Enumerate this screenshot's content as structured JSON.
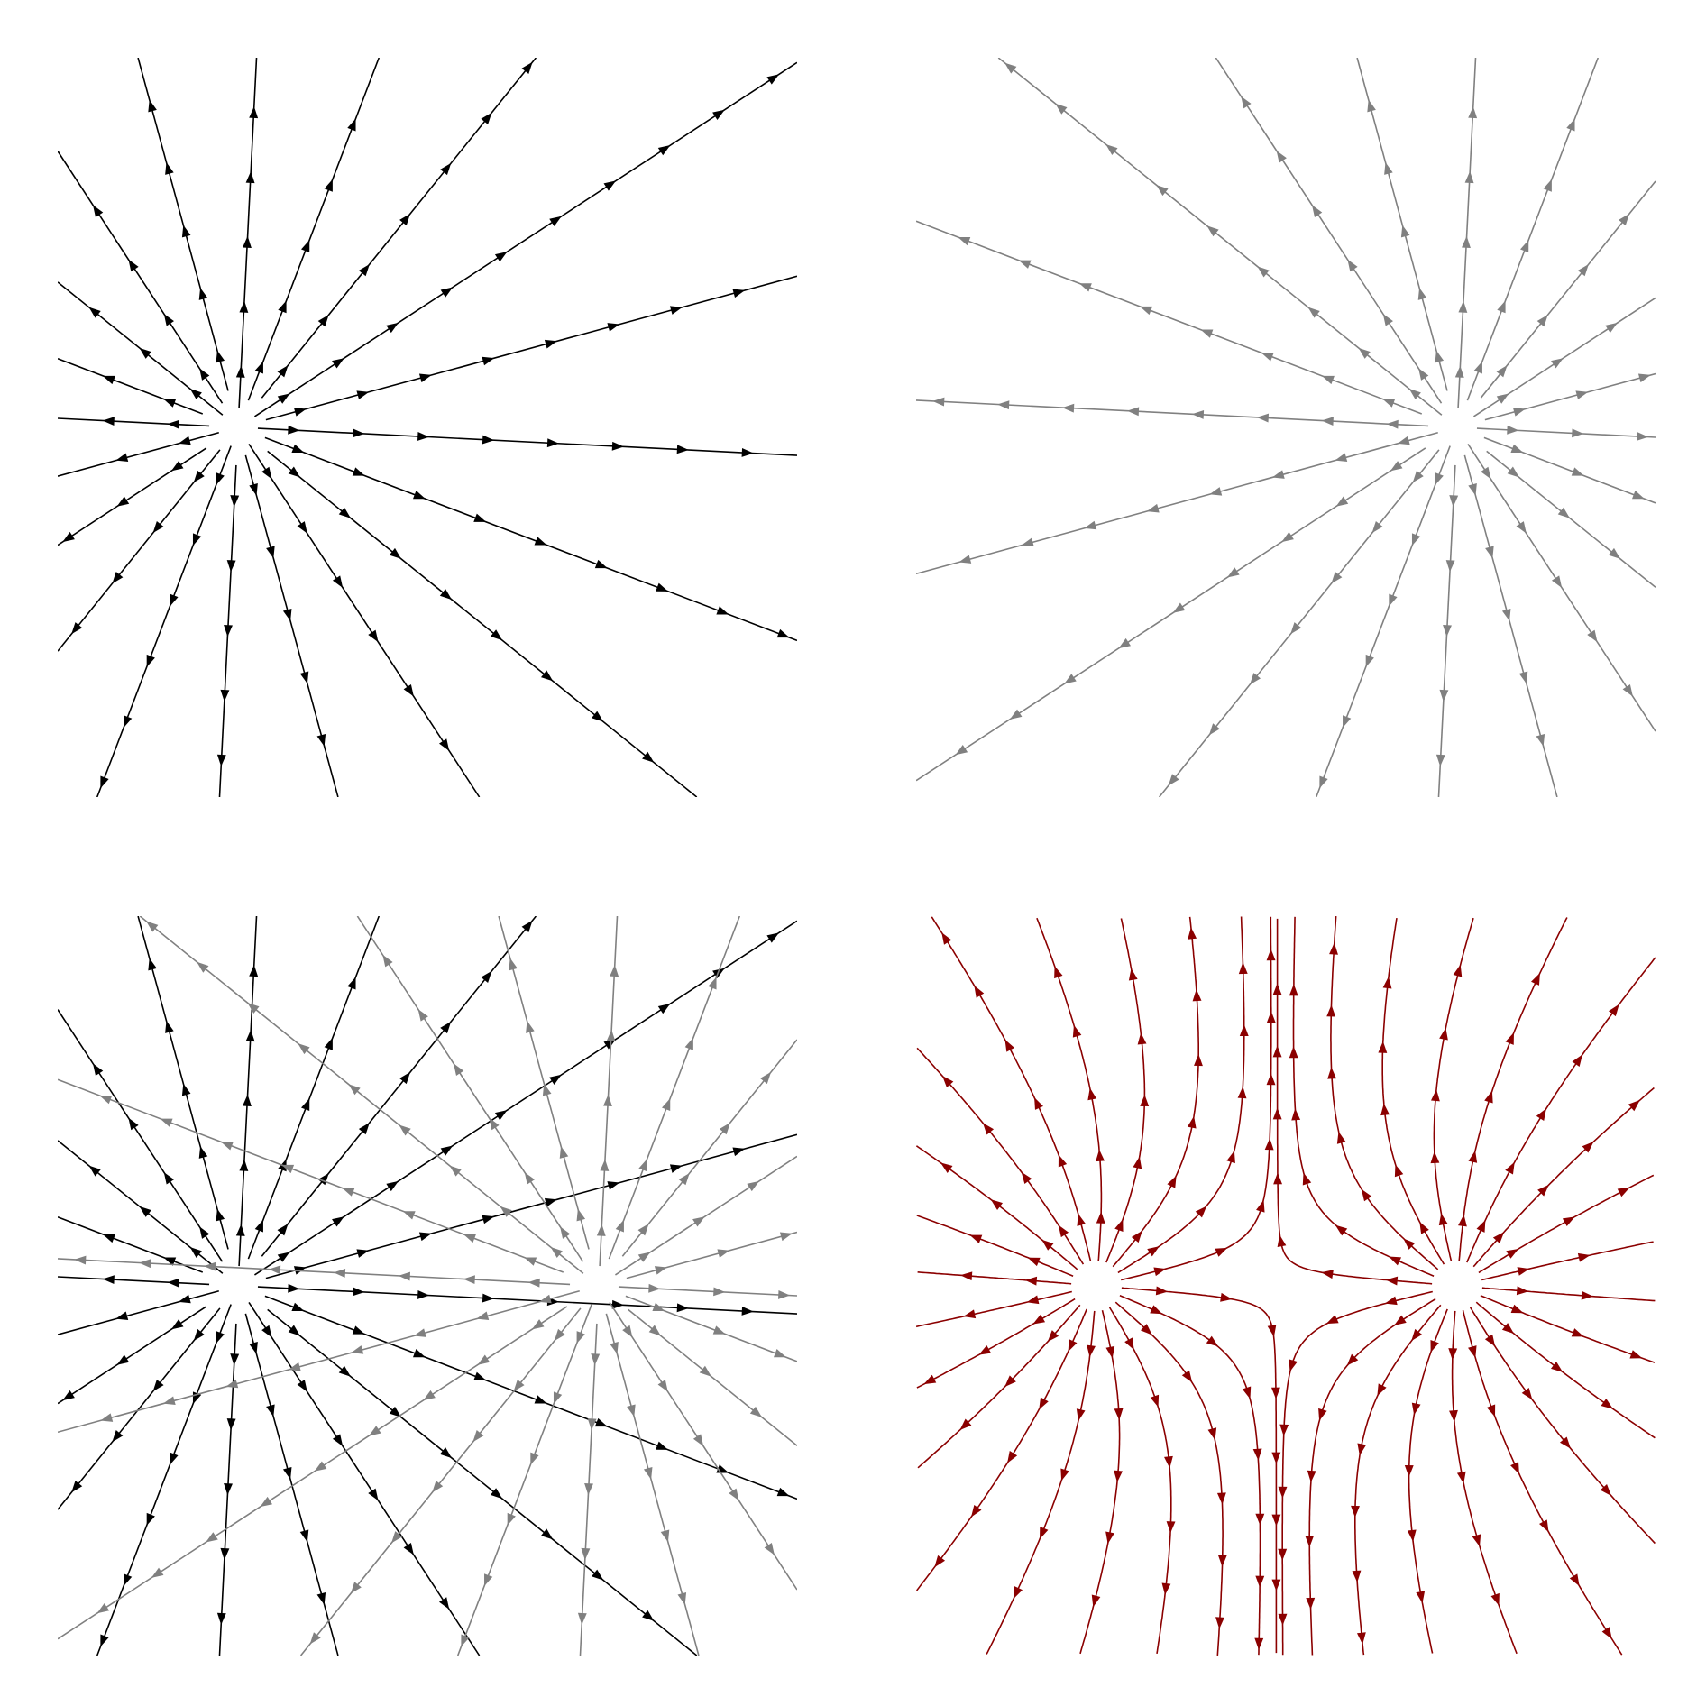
{
  "figure": {
    "colors": {
      "positive_source": "#000000",
      "negative_source": "#808080",
      "combined_field": "#8b0000",
      "background": "#ffffff"
    },
    "panels": [
      {
        "id": "single-source-left",
        "kind": "radial",
        "sources": [
          "left"
        ],
        "direction": "outward",
        "color": "positive_source"
      },
      {
        "id": "single-source-right",
        "kind": "radial",
        "sources": [
          "right"
        ],
        "direction": "outward",
        "color": "negative_source"
      },
      {
        "id": "overlay-both",
        "kind": "radial-overlay",
        "sources": [
          "left",
          "right"
        ],
        "direction": "outward"
      },
      {
        "id": "combined-field",
        "kind": "field-lines",
        "sources": [
          "left",
          "right"
        ],
        "direction": "outward",
        "color": "combined_field"
      }
    ]
  }
}
